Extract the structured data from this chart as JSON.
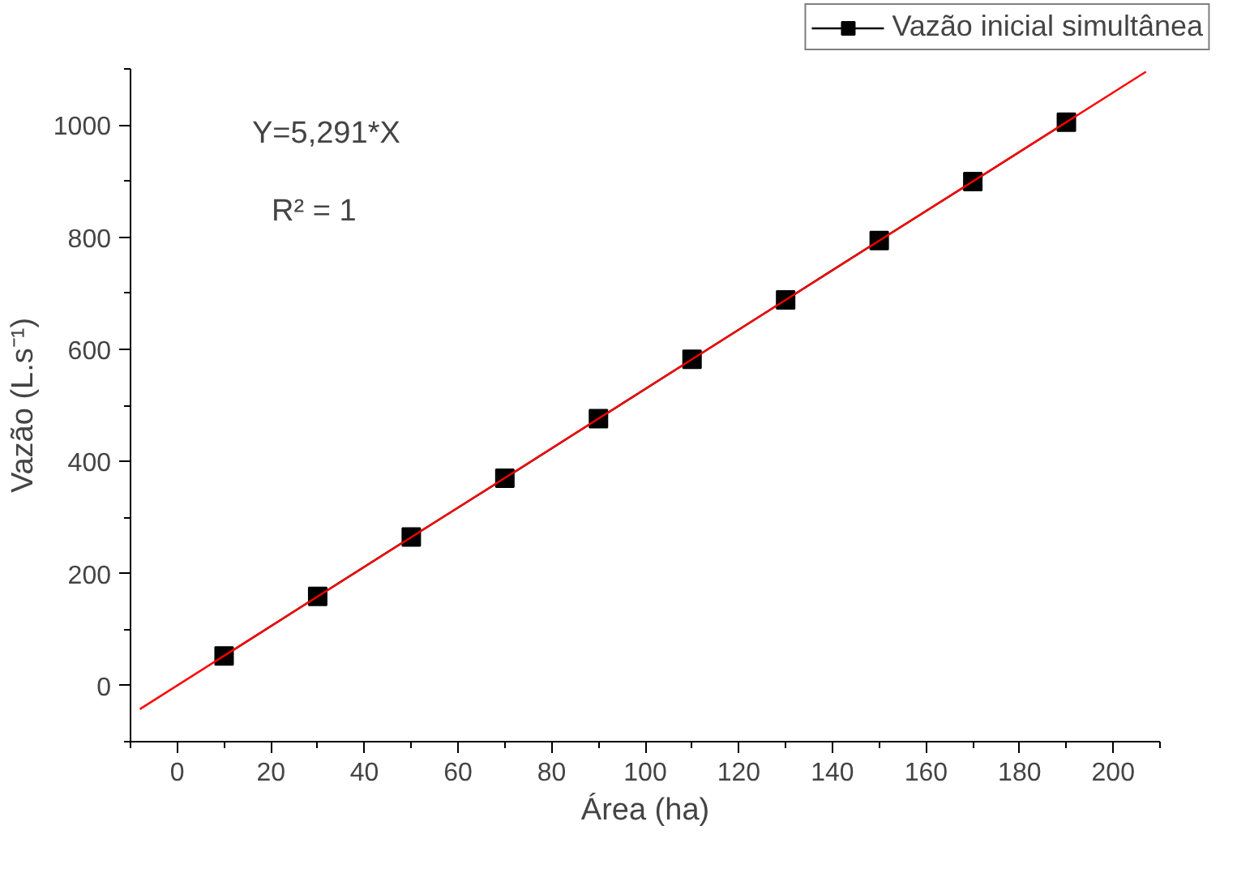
{
  "chart_data": {
    "type": "line",
    "xlabel": "Área (ha)",
    "ylabel": "Vazão (L.s⁻¹)",
    "x": [
      10,
      30,
      50,
      70,
      90,
      110,
      130,
      150,
      170,
      190
    ],
    "series": [
      {
        "name": "Vazão inicial simultânea",
        "color": "#000000",
        "marker": "square",
        "values": [
          53,
          159,
          265,
          370,
          476,
          582,
          688,
          794,
          899,
          1005
        ]
      },
      {
        "color": "#ff0000",
        "marker": "none",
        "x": [
          -8,
          207
        ],
        "values": [
          -42,
          1095
        ]
      }
    ],
    "annotations": [
      "Y=5,291*X",
      "R² = 1"
    ],
    "xlim": [
      -10,
      210
    ],
    "ylim": [
      -100,
      1100
    ],
    "xticks": [
      0,
      20,
      40,
      60,
      80,
      100,
      120,
      140,
      160,
      180,
      200
    ],
    "yticks": [
      0,
      200,
      400,
      600,
      800,
      1000
    ],
    "grid": false,
    "legend": "top right"
  }
}
